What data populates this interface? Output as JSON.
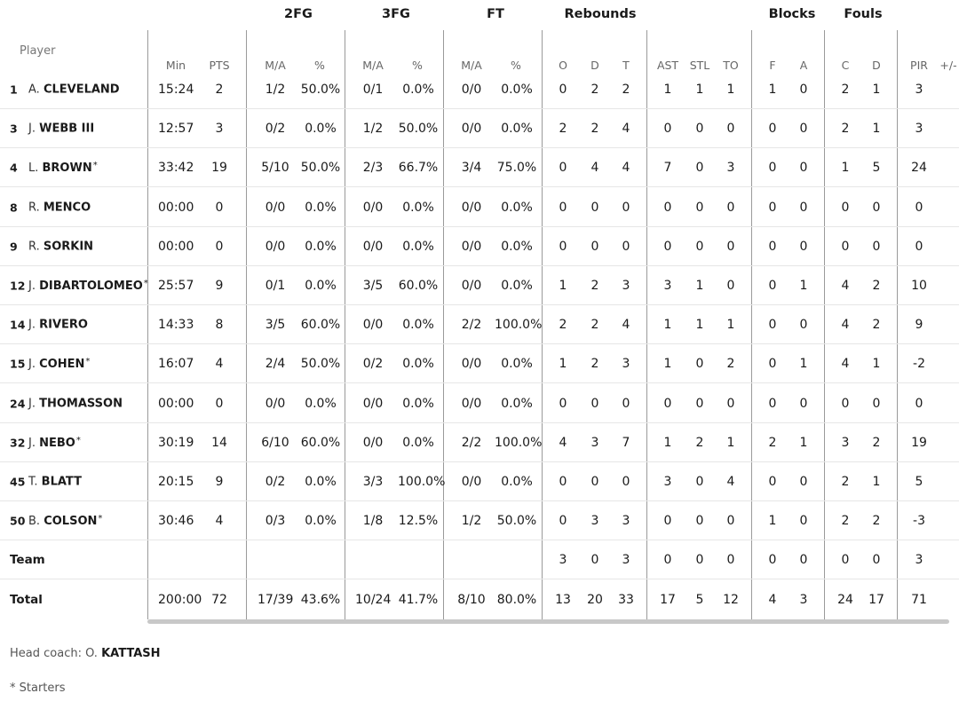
{
  "groups": {
    "fg2": "2FG",
    "fg3": "3FG",
    "ft": "FT",
    "rebounds": "Rebounds",
    "blocks": "Blocks",
    "fouls": "Fouls"
  },
  "headers": {
    "player": "Player",
    "min": "Min",
    "pts": "PTS",
    "fg2_ma": "M/A",
    "fg2_pct": "%",
    "fg3_ma": "M/A",
    "fg3_pct": "%",
    "ft_ma": "M/A",
    "ft_pct": "%",
    "reb_o": "O",
    "reb_d": "D",
    "reb_t": "T",
    "ast": "AST",
    "stl": "STL",
    "to": "TO",
    "blk_f": "F",
    "blk_a": "A",
    "foul_c": "C",
    "foul_d": "D",
    "pir": "PIR",
    "pm": "+/-"
  },
  "players": [
    {
      "no": "1",
      "initial": "A.",
      "last": "CLEVELAND",
      "starter": false,
      "min": "15:24",
      "pts": "2",
      "fg2_ma": "1/2",
      "fg2_pct": "50.0%",
      "fg3_ma": "0/1",
      "fg3_pct": "0.0%",
      "ft_ma": "0/0",
      "ft_pct": "0.0%",
      "o": "0",
      "d": "2",
      "t": "2",
      "ast": "1",
      "stl": "1",
      "to": "1",
      "bf": "1",
      "ba": "0",
      "fc": "2",
      "fd": "1",
      "pir": "3"
    },
    {
      "no": "3",
      "initial": "J.",
      "last": "WEBB III",
      "starter": false,
      "min": "12:57",
      "pts": "3",
      "fg2_ma": "0/2",
      "fg2_pct": "0.0%",
      "fg3_ma": "1/2",
      "fg3_pct": "50.0%",
      "ft_ma": "0/0",
      "ft_pct": "0.0%",
      "o": "2",
      "d": "2",
      "t": "4",
      "ast": "0",
      "stl": "0",
      "to": "0",
      "bf": "0",
      "ba": "0",
      "fc": "2",
      "fd": "1",
      "pir": "3"
    },
    {
      "no": "4",
      "initial": "L.",
      "last": "BROWN",
      "starter": true,
      "min": "33:42",
      "pts": "19",
      "fg2_ma": "5/10",
      "fg2_pct": "50.0%",
      "fg3_ma": "2/3",
      "fg3_pct": "66.7%",
      "ft_ma": "3/4",
      "ft_pct": "75.0%",
      "o": "0",
      "d": "4",
      "t": "4",
      "ast": "7",
      "stl": "0",
      "to": "3",
      "bf": "0",
      "ba": "0",
      "fc": "1",
      "fd": "5",
      "pir": "24"
    },
    {
      "no": "8",
      "initial": "R.",
      "last": "MENCO",
      "starter": false,
      "min": "00:00",
      "pts": "0",
      "fg2_ma": "0/0",
      "fg2_pct": "0.0%",
      "fg3_ma": "0/0",
      "fg3_pct": "0.0%",
      "ft_ma": "0/0",
      "ft_pct": "0.0%",
      "o": "0",
      "d": "0",
      "t": "0",
      "ast": "0",
      "stl": "0",
      "to": "0",
      "bf": "0",
      "ba": "0",
      "fc": "0",
      "fd": "0",
      "pir": "0"
    },
    {
      "no": "9",
      "initial": "R.",
      "last": "SORKIN",
      "starter": false,
      "min": "00:00",
      "pts": "0",
      "fg2_ma": "0/0",
      "fg2_pct": "0.0%",
      "fg3_ma": "0/0",
      "fg3_pct": "0.0%",
      "ft_ma": "0/0",
      "ft_pct": "0.0%",
      "o": "0",
      "d": "0",
      "t": "0",
      "ast": "0",
      "stl": "0",
      "to": "0",
      "bf": "0",
      "ba": "0",
      "fc": "0",
      "fd": "0",
      "pir": "0"
    },
    {
      "no": "12",
      "initial": "J.",
      "last": "DIBARTOLOMEO",
      "starter": true,
      "min": "25:57",
      "pts": "9",
      "fg2_ma": "0/1",
      "fg2_pct": "0.0%",
      "fg3_ma": "3/5",
      "fg3_pct": "60.0%",
      "ft_ma": "0/0",
      "ft_pct": "0.0%",
      "o": "1",
      "d": "2",
      "t": "3",
      "ast": "3",
      "stl": "1",
      "to": "0",
      "bf": "0",
      "ba": "1",
      "fc": "4",
      "fd": "2",
      "pir": "10"
    },
    {
      "no": "14",
      "initial": "J.",
      "last": "RIVERO",
      "starter": false,
      "min": "14:33",
      "pts": "8",
      "fg2_ma": "3/5",
      "fg2_pct": "60.0%",
      "fg3_ma": "0/0",
      "fg3_pct": "0.0%",
      "ft_ma": "2/2",
      "ft_pct": "100.0%",
      "o": "2",
      "d": "2",
      "t": "4",
      "ast": "1",
      "stl": "1",
      "to": "1",
      "bf": "0",
      "ba": "0",
      "fc": "4",
      "fd": "2",
      "pir": "9"
    },
    {
      "no": "15",
      "initial": "J.",
      "last": "COHEN",
      "starter": true,
      "min": "16:07",
      "pts": "4",
      "fg2_ma": "2/4",
      "fg2_pct": "50.0%",
      "fg3_ma": "0/2",
      "fg3_pct": "0.0%",
      "ft_ma": "0/0",
      "ft_pct": "0.0%",
      "o": "1",
      "d": "2",
      "t": "3",
      "ast": "1",
      "stl": "0",
      "to": "2",
      "bf": "0",
      "ba": "1",
      "fc": "4",
      "fd": "1",
      "pir": "-2"
    },
    {
      "no": "24",
      "initial": "J.",
      "last": "THOMASSON",
      "starter": false,
      "min": "00:00",
      "pts": "0",
      "fg2_ma": "0/0",
      "fg2_pct": "0.0%",
      "fg3_ma": "0/0",
      "fg3_pct": "0.0%",
      "ft_ma": "0/0",
      "ft_pct": "0.0%",
      "o": "0",
      "d": "0",
      "t": "0",
      "ast": "0",
      "stl": "0",
      "to": "0",
      "bf": "0",
      "ba": "0",
      "fc": "0",
      "fd": "0",
      "pir": "0"
    },
    {
      "no": "32",
      "initial": "J.",
      "last": "NEBO",
      "starter": true,
      "min": "30:19",
      "pts": "14",
      "fg2_ma": "6/10",
      "fg2_pct": "60.0%",
      "fg3_ma": "0/0",
      "fg3_pct": "0.0%",
      "ft_ma": "2/2",
      "ft_pct": "100.0%",
      "o": "4",
      "d": "3",
      "t": "7",
      "ast": "1",
      "stl": "2",
      "to": "1",
      "bf": "2",
      "ba": "1",
      "fc": "3",
      "fd": "2",
      "pir": "19"
    },
    {
      "no": "45",
      "initial": "T.",
      "last": "BLATT",
      "starter": false,
      "min": "20:15",
      "pts": "9",
      "fg2_ma": "0/2",
      "fg2_pct": "0.0%",
      "fg3_ma": "3/3",
      "fg3_pct": "100.0%",
      "ft_ma": "0/0",
      "ft_pct": "0.0%",
      "o": "0",
      "d": "0",
      "t": "0",
      "ast": "3",
      "stl": "0",
      "to": "4",
      "bf": "0",
      "ba": "0",
      "fc": "2",
      "fd": "1",
      "pir": "5"
    },
    {
      "no": "50",
      "initial": "B.",
      "last": "COLSON",
      "starter": true,
      "min": "30:46",
      "pts": "4",
      "fg2_ma": "0/3",
      "fg2_pct": "0.0%",
      "fg3_ma": "1/8",
      "fg3_pct": "12.5%",
      "ft_ma": "1/2",
      "ft_pct": "50.0%",
      "o": "0",
      "d": "3",
      "t": "3",
      "ast": "0",
      "stl": "0",
      "to": "0",
      "bf": "1",
      "ba": "0",
      "fc": "2",
      "fd": "2",
      "pir": "-3"
    }
  ],
  "team": {
    "label": "Team",
    "o": "3",
    "d": "0",
    "t": "3",
    "ast": "0",
    "stl": "0",
    "to": "0",
    "bf": "0",
    "ba": "0",
    "fc": "0",
    "fd": "0",
    "pir": "3"
  },
  "total": {
    "label": "Total",
    "min": "200:00",
    "pts": "72",
    "fg2_ma": "17/39",
    "fg2_pct": "43.6%",
    "fg3_ma": "10/24",
    "fg3_pct": "41.7%",
    "ft_ma": "8/10",
    "ft_pct": "80.0%",
    "o": "13",
    "d": "20",
    "t": "33",
    "ast": "17",
    "stl": "5",
    "to": "12",
    "bf": "4",
    "ba": "3",
    "fc": "24",
    "fd": "17",
    "pir": "71"
  },
  "footer": {
    "coach_label": "Head coach: O.",
    "coach_name": "KATTASH",
    "starters_note": "* Starters"
  }
}
